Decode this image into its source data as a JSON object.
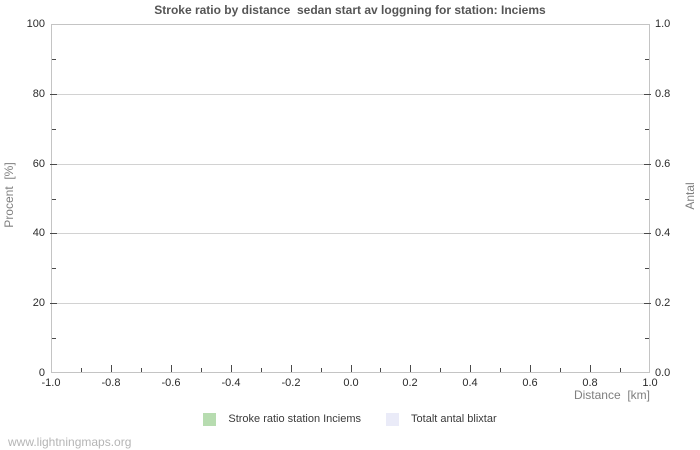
{
  "page": {
    "watermark": "www.lightningmaps.org"
  },
  "chart_data": {
    "type": "line",
    "title": "Stroke ratio by distance  sedan start av loggning for station: Inciems",
    "xlabel": "Distance  [km]",
    "ylabel_left": "Procent  [%]",
    "ylabel_right": "Antal",
    "x_ticks": [
      "-1.0",
      "-0.8",
      "-0.6",
      "-0.4",
      "-0.2",
      "0.0",
      "0.2",
      "0.4",
      "0.6",
      "0.8",
      "1.0"
    ],
    "xlim": [
      -1.0,
      1.0
    ],
    "y_left_ticks": [
      "0",
      "20",
      "40",
      "60",
      "80",
      "100"
    ],
    "ylim_left": [
      0,
      100
    ],
    "y_right_ticks": [
      "0.0",
      "0.2",
      "0.4",
      "0.6",
      "0.8",
      "1.0"
    ],
    "ylim_right": [
      0.0,
      1.0
    ],
    "grid": "horizontal-major-only",
    "series": [
      {
        "name": "Stroke ratio station Inciems",
        "axis": "left",
        "color": "#b7dcb0",
        "points": []
      },
      {
        "name": "Totalt antal blixtar",
        "axis": "right",
        "color": "#eaebf8",
        "points": []
      }
    ],
    "legend": {
      "position": "bottom-center",
      "items": [
        {
          "label": "Stroke ratio station Inciems",
          "color": "#b7dcb0"
        },
        {
          "label": "Totalt antal blixtar",
          "color": "#eaebf8"
        }
      ]
    },
    "colors": {
      "title": "#555555",
      "axis_title": "#7f7f7f",
      "tick_label": "#2b2b2b",
      "tick_mark": "#4a4a4a",
      "gridline": "#d2d2d2",
      "plot_border": "#c4c4c4",
      "watermark": "#b5b5b5",
      "background": "#ffffff"
    }
  }
}
